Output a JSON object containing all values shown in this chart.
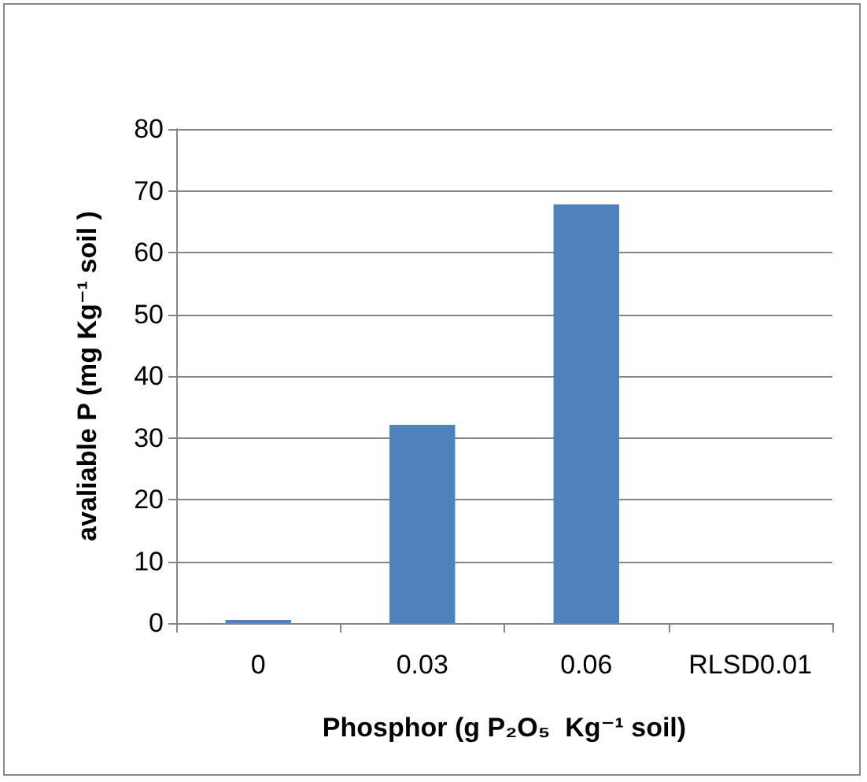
{
  "chart_data": {
    "type": "bar",
    "xlabel": "Phosphor (g P₂O₅  Kg⁻¹ soil)",
    "ylabel": "avaliable P (mg Kg⁻¹ soil )",
    "categories": [
      "0",
      "0.03",
      "0.06",
      "RLSD0.01"
    ],
    "values": [
      0.5,
      32.1,
      67.8,
      null
    ],
    "color": "#4f81bd",
    "ylim": [
      0,
      80
    ],
    "yticks": [
      0,
      10,
      20,
      30,
      40,
      50,
      60,
      70,
      80
    ],
    "grid": "y"
  }
}
